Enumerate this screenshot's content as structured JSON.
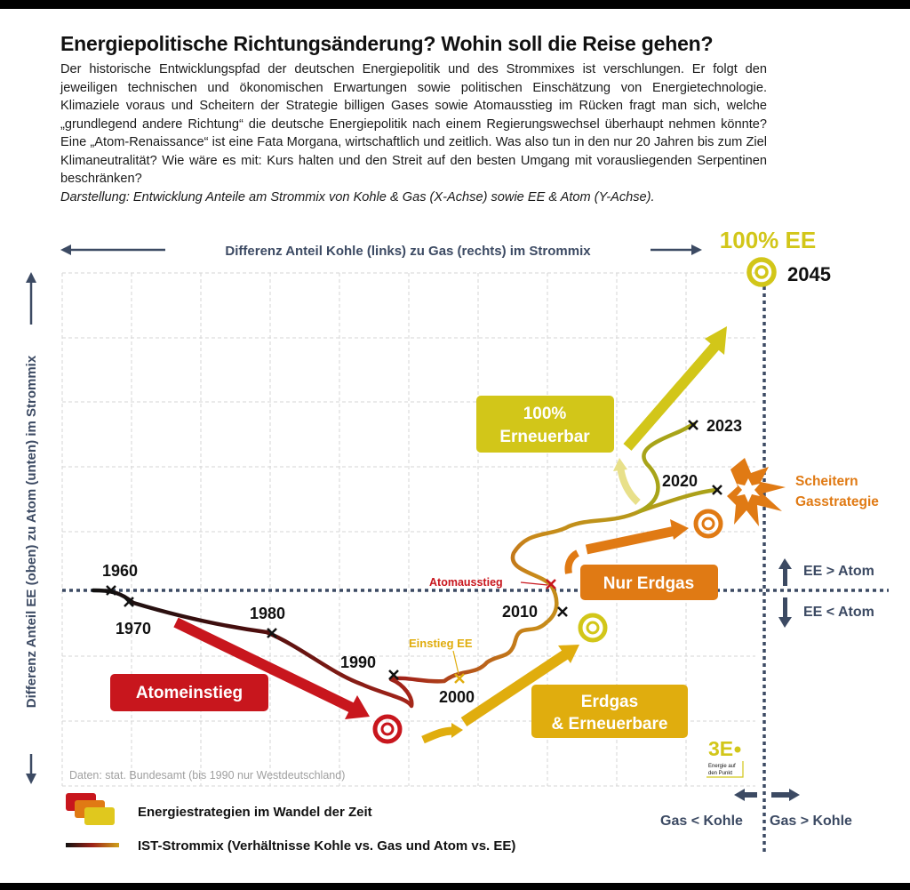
{
  "header": {
    "title": "Energiepolitische Richtungsänderung? Wohin soll die Reise gehen?",
    "intro": "Der historische Entwicklungspfad der deutschen Energiepolitik und des Strommixes ist verschlungen. Er folgt den jeweiligen technischen und ökonomischen Erwartungen sowie politischen Einschätzung von Energietechnologie. Klimaziele voraus und Scheitern der Strategie billigen Gases sowie Atomausstieg im Rücken fragt man sich, welche „grundlegend andere Richtung“ die deutsche Energiepolitik nach einem Regierungswechsel überhaupt nehmen könnte? Eine „Atom-Renaissance“ ist eine Fata Morgana, wirtschaftlich und zeitlich. Was also tun in den nur 20 Jahren bis zum Ziel Klimaneutralität? Wie wäre es mit: Kurs halten und den Streit auf den besten Umgang mit vorausliegenden Serpentinen beschränken?",
    "note": "Darstellung: Entwicklung Anteile am Strommix von Kohle & Gas (X-Achse) sowie EE & Atom (Y-Achse)."
  },
  "axes": {
    "x_label": "Differenz Anteil Kohle (links) zu Gas (rechts) im Strommix",
    "y_label": "Differenz Anteil EE (oben)  zu Atom (unten) im Strommix",
    "ee_gt_atom": "EE > Atom",
    "ee_lt_atom": "EE < Atom",
    "gas_lt_kohle": "Gas < Kohle",
    "gas_gt_kohle": "Gas > Kohle"
  },
  "target": {
    "label": "100% EE",
    "year": "2045"
  },
  "years": {
    "y1960": "1960",
    "y1970": "1970",
    "y1980": "1980",
    "y1990": "1990",
    "y2000": "2000",
    "y2010": "2010",
    "y2020": "2020",
    "y2023": "2023"
  },
  "events": {
    "atomausstieg": "Atomausstieg",
    "einstieg_ee": "Einstieg EE",
    "scheitern_1": "Scheitern",
    "scheitern_2": "Gasstrategie"
  },
  "strategies": {
    "atomeinstieg": "Atomeinstieg",
    "erdgas_ee_1": "Erdgas",
    "erdgas_ee_2": "& Erneuerbare",
    "nur_erdgas": "Nur Erdgas",
    "ee100_1": "100%",
    "ee100_2": "Erneuerbar"
  },
  "source": "Daten: stat. Bundesamt (bis 1990 nur Westdeutschland)",
  "logo": {
    "mark": "3E",
    "tagline_1": "Energie auf",
    "tagline_2": "den Punkt"
  },
  "legend": {
    "strategies": "Energiestrategien im Wandel der Zeit",
    "actual": "IST-Strommix (Verhältnisse Kohle vs. Gas und Atom vs. EE)"
  },
  "colors": {
    "red": "#c8161d",
    "orange": "#e07a14",
    "gold": "#e0ad0e",
    "yellow": "#d2c619",
    "navy": "#3c4a63"
  }
}
